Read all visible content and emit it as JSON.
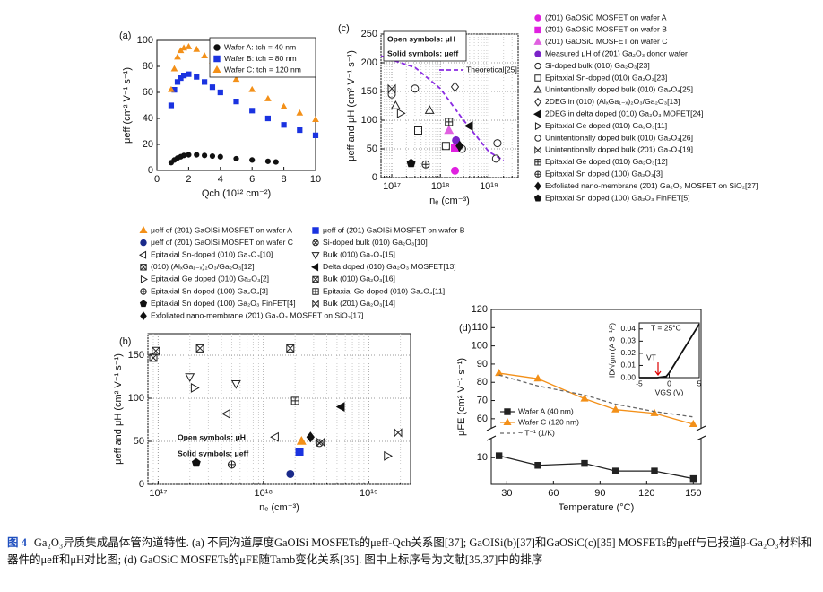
{
  "chart_data": [
    {
      "type": "scatter",
      "label": "(a)",
      "xlabel": "Qch (10¹² cm⁻²)",
      "ylabel": "μeff (cm² V⁻¹ s⁻¹)",
      "xlim": [
        0,
        10
      ],
      "xticks": [
        0,
        2,
        4,
        6,
        8,
        10
      ],
      "ylim": [
        0,
        100
      ],
      "yticks": [
        0,
        20,
        40,
        60,
        80,
        100
      ],
      "grid": false,
      "series": [
        {
          "name": "Wafer A: tch = 40 nm",
          "color": "#111111",
          "marker": "circle",
          "filled": true,
          "x": [
            0.9,
            1.1,
            1.3,
            1.5,
            1.7,
            2.0,
            2.5,
            3,
            3.5,
            4,
            5,
            6,
            7,
            7.5
          ],
          "values": [
            6,
            8,
            9.5,
            10.5,
            11.5,
            12,
            12,
            11.5,
            11,
            10.5,
            9,
            8,
            7,
            6.5
          ]
        },
        {
          "name": "Wafer B: tch = 80 nm",
          "color": "#1a33e0",
          "marker": "square",
          "filled": true,
          "x": [
            0.9,
            1.1,
            1.3,
            1.5,
            1.7,
            2.0,
            2.5,
            3,
            3.5,
            4,
            5,
            6,
            7,
            8,
            9,
            10
          ],
          "values": [
            50,
            62,
            68,
            71,
            73,
            74,
            72,
            68,
            64,
            60,
            53,
            46,
            40,
            35,
            31,
            27
          ]
        },
        {
          "name": "Wafer C: tch = 120 nm",
          "color": "#f39019",
          "marker": "triangle-up",
          "filled": true,
          "x": [
            0.9,
            1.1,
            1.3,
            1.5,
            1.7,
            2.0,
            2.5,
            3,
            3.5,
            4,
            5,
            6,
            7,
            8,
            9,
            10
          ],
          "values": [
            62,
            78,
            87,
            92,
            94,
            95,
            93,
            88,
            84,
            79,
            70,
            62,
            55,
            49,
            44,
            39
          ]
        }
      ]
    },
    {
      "type": "scatter",
      "label": "(b)",
      "xlabel": "nₑ (cm⁻³)",
      "ylabel": "μeff and μH (cm² V⁻¹ s⁻¹)",
      "xscale": "log",
      "xlim": [
        8e+16,
        2.5e+19
      ],
      "xticks": [
        {
          "value": 1e+17,
          "label": "10¹⁷"
        },
        {
          "value": 1e+18,
          "label": "10¹⁸"
        },
        {
          "value": 1e+19,
          "label": "10¹⁹"
        }
      ],
      "ylim": [
        0,
        175
      ],
      "yticks": [
        0,
        50,
        100,
        150
      ],
      "grid": true,
      "annotations": [
        "Open symbols: μH",
        "Solid symbols: μeff"
      ],
      "series": [
        {
          "name": "μeff of (2̄01) GaOISi MOSFET on wafer A",
          "color": "#f39019",
          "marker": "triangle-up",
          "filled": true,
          "x": [
            2.3e+18
          ],
          "values": [
            50
          ]
        },
        {
          "name": "μeff of (2̄01) GaOISi MOSFET on wafer B",
          "color": "#1a33e0",
          "marker": "square",
          "filled": true,
          "x": [
            2.2e+18
          ],
          "values": [
            38
          ]
        },
        {
          "name": "μeff of (2̄01) GaOISi MOSFET on wafer C",
          "color": "#1a2a8a",
          "marker": "circle",
          "filled": true,
          "x": [
            1.8e+18
          ],
          "values": [
            12
          ]
        },
        {
          "name": "Si-doped bulk (010) Ga₂O₃[10]",
          "color": "#222222",
          "marker": "x-circle",
          "filled": false,
          "x": [
            3.4e+18
          ],
          "values": [
            48
          ]
        },
        {
          "name": "Epitaxial Sn-doped (010) Ga₂O₃[10]",
          "color": "#222222",
          "marker": "triangle-left",
          "filled": false,
          "x": [
            4.5e+17,
            1.3e+18
          ],
          "values": [
            82,
            55
          ]
        },
        {
          "name": "Bulk (010) Ga₂O₃[15]",
          "color": "#222222",
          "marker": "triangle-down",
          "filled": false,
          "x": [
            2e+17,
            5.5e+17
          ],
          "values": [
            125,
            117
          ]
        },
        {
          "name": "(010) (AlₓGa₁₋ₓ)₂O₃/Ga₂O₃[12]",
          "color": "#222222",
          "marker": "x-square",
          "filled": false,
          "x": [
            9.5e+16,
            2.5e+17,
            1.8e+18
          ],
          "values": [
            155,
            158,
            158
          ]
        },
        {
          "name": "Delta doped (010) Ga₂O₃ MOSFET[13]",
          "color": "#111111",
          "marker": "triangle-left",
          "filled": true,
          "x": [
            5.5e+18
          ],
          "values": [
            90
          ]
        },
        {
          "name": "Epitaxial Ge doped (010) Ga₂O₃[2]",
          "color": "#222222",
          "marker": "triangle-right",
          "filled": false,
          "x": [
            2.2e+17,
            1.5e+19
          ],
          "values": [
            112,
            33
          ]
        },
        {
          "name": "Bulk (010) Ga₂O₃[16]",
          "color": "#222222",
          "marker": "x-square",
          "filled": false,
          "x": [
            9e+16
          ],
          "values": [
            147
          ]
        },
        {
          "name": "Epitaxial Sn doped (100) Ga₂O₃[3]",
          "color": "#222222",
          "marker": "plus-circle",
          "filled": false,
          "x": [
            5e+17
          ],
          "values": [
            23
          ]
        },
        {
          "name": "Epitaxial Ge doped (010) Ga₂O₃[11]",
          "color": "#222222",
          "marker": "plus-square",
          "filled": false,
          "x": [
            2e+18
          ],
          "values": [
            97
          ]
        },
        {
          "name": "Epitaxial Sn doped (100) Ga₂O₃ FinFET[4]",
          "color": "#111111",
          "marker": "pentagon",
          "filled": true,
          "x": [
            2.3e+17
          ],
          "values": [
            25
          ]
        },
        {
          "name": "Bulk (2̄01) Ga₂O₃[14]",
          "color": "#222222",
          "marker": "bowtie",
          "filled": false,
          "x": [
            1.9e+19,
            3.5e+18
          ],
          "values": [
            60,
            49
          ]
        },
        {
          "name": "Exfoliated nano-membrane (2̄01) Ga₂O₃ MOSFET on SiO₂[17]",
          "color": "#111111",
          "marker": "diamond",
          "filled": true,
          "x": [
            2.8e+18
          ],
          "values": [
            55
          ]
        }
      ]
    },
    {
      "type": "scatter",
      "label": "(c)",
      "xlabel": "nₑ (cm⁻³)",
      "ylabel": "μeff and μH (cm² V⁻¹ s⁻¹)",
      "xscale": "log",
      "xlim": [
        6e+16,
        4e+19
      ],
      "xticks": [
        {
          "value": 1e+17,
          "label": "10¹⁷"
        },
        {
          "value": 1e+18,
          "label": "10¹⁸"
        },
        {
          "value": 1e+19,
          "label": "10¹⁹"
        }
      ],
      "ylim": [
        0,
        250
      ],
      "yticks": [
        0,
        50,
        100,
        150,
        200,
        250
      ],
      "grid": true,
      "annotations": [
        "Open symbols: μH",
        "Solid symbols: μeff"
      ],
      "theory": {
        "name": "Theoretical[25]",
        "color": "#8a2be2",
        "x": [
          6e+16,
          1e+17,
          3e+17,
          1e+18,
          3e+18,
          1e+19,
          2e+19
        ],
        "values": [
          212,
          205,
          192,
          155,
          100,
          45,
          30
        ]
      },
      "series": [
        {
          "name": "(2̄01) GaOSiC MOSFET on wafer A",
          "color": "#e020e0",
          "marker": "circle",
          "filled": true,
          "x": [
            2e+18
          ],
          "values": [
            12
          ]
        },
        {
          "name": "(2̄01) GaOSiC MOSFET on wafer B",
          "color": "#e020e0",
          "marker": "square",
          "filled": true,
          "x": [
            2e+18
          ],
          "values": [
            52
          ]
        },
        {
          "name": "(2̄01) GaOSiC MOSFET on wafer C",
          "color": "#e060e0",
          "marker": "triangle-up",
          "filled": true,
          "x": [
            1.5e+18
          ],
          "values": [
            82
          ]
        },
        {
          "name": "Measured μH of (2̄01) Ga₂O₃ donor wafer",
          "color": "#7a22c8",
          "marker": "circle",
          "filled": true,
          "x": [
            2.1e+18
          ],
          "values": [
            65
          ]
        },
        {
          "name": "Si-doped bulk (010) Ga₂O₃[23]",
          "color": "#222222",
          "marker": "circle",
          "filled": false,
          "x": [
            1e+17,
            3e+17,
            1.5e+19,
            2.8e+18
          ],
          "values": [
            145,
            155,
            60,
            50
          ]
        },
        {
          "name": "Epitaxial Sn-doped (010) Ga₂O₃[23]",
          "color": "#222222",
          "marker": "square",
          "filled": false,
          "x": [
            3.5e+17,
            1.3e+18
          ],
          "values": [
            82,
            55
          ]
        },
        {
          "name": "Unintentionally doped bulk (010) Ga₂O₃[25]",
          "color": "#222222",
          "marker": "triangle-up",
          "filled": false,
          "x": [
            1.2e+17,
            6e+17
          ],
          "values": [
            125,
            117
          ]
        },
        {
          "name": "2DEG in (010) (AlₓGa₁₋ₓ)₂O₃/Ga₂O₃[13]",
          "color": "#222222",
          "marker": "diamond",
          "filled": false,
          "x": [
            2e+18
          ],
          "values": [
            158
          ]
        },
        {
          "name": "2DEG in delta doped (010) Ga₂O₃ MOFET[24]",
          "color": "#111111",
          "marker": "triangle-left",
          "filled": true,
          "x": [
            4e+18
          ],
          "values": [
            90
          ]
        },
        {
          "name": "Epitaxial Ge doped (010) Ga₂O₃[11]",
          "color": "#222222",
          "marker": "triangle-right",
          "filled": false,
          "x": [
            1.5e+17
          ],
          "values": [
            112
          ]
        },
        {
          "name": "Unintentionally doped bulk (010) Ga₂O₃[26]",
          "color": "#222222",
          "marker": "circle",
          "filled": false,
          "x": [
            1.4e+19
          ],
          "values": [
            33
          ]
        },
        {
          "name": "Unintentionally doped bulk (2̄01) Ga₂O₃[19]",
          "color": "#222222",
          "marker": "bowtie",
          "filled": false,
          "x": [
            1e+17
          ],
          "values": [
            155
          ]
        },
        {
          "name": "Epitaxial Ge doped (010) Ga₂O₃[12]",
          "color": "#222222",
          "marker": "plus-square",
          "filled": false,
          "x": [
            1.5e+18
          ],
          "values": [
            97
          ]
        },
        {
          "name": "Epitaxial Sn doped (100) Ga₂O₃[3]",
          "color": "#222222",
          "marker": "plus-circle",
          "filled": false,
          "x": [
            5e+17
          ],
          "values": [
            23
          ]
        },
        {
          "name": "Exfoliated nano-membrane (2̄01) Ga₂O₃ MOSFET on SiO₂[27]",
          "color": "#111111",
          "marker": "diamond",
          "filled": true,
          "x": [
            2.5e+18
          ],
          "values": [
            55
          ]
        },
        {
          "name": "Epitaxial Sn doped (100) Ga₂O₃ FinFET[5]",
          "color": "#111111",
          "marker": "pentagon",
          "filled": true,
          "x": [
            2.5e+17
          ],
          "values": [
            25
          ]
        }
      ]
    },
    {
      "type": "line",
      "label": "(d)",
      "xlabel": "Temperature (°C)",
      "ylabel": "μFE (cm² V⁻¹ s⁻¹)",
      "xlim": [
        20,
        155
      ],
      "xticks": [
        30,
        60,
        90,
        120,
        150
      ],
      "ylim": [
        55,
        120
      ],
      "yticks": [
        60,
        70,
        80,
        90,
        100,
        110,
        120
      ],
      "ylim_lower": [
        3,
        15
      ],
      "yticks_lower": [
        10
      ],
      "grid": false,
      "series": [
        {
          "name": "Wafer A (40 nm)",
          "color": "#222222",
          "marker": "square",
          "filled": true,
          "line": true,
          "axis": "lower",
          "x": [
            25,
            50,
            80,
            100,
            125,
            150
          ],
          "values": [
            10.5,
            8,
            8.5,
            6.5,
            6.5,
            4.5
          ]
        },
        {
          "name": "Wafer C (120 nm)",
          "color": "#f39019",
          "marker": "triangle-up",
          "filled": true,
          "line": true,
          "x": [
            25,
            50,
            80,
            100,
            125,
            150
          ],
          "values": [
            85,
            82,
            71,
            65,
            63,
            57
          ]
        },
        {
          "name": "~ T⁻¹ (1/K)",
          "color": "#666666",
          "line": true,
          "dash": true,
          "x": [
            25,
            50,
            80,
            100,
            125,
            150
          ],
          "values": [
            84,
            78,
            73,
            68,
            64,
            61
          ]
        }
      ]
    },
    {
      "type": "line",
      "xlabel": "VGS (V)",
      "ylabel": "ID/√gm (A S⁻¹/²)",
      "xlim": [
        -5,
        5
      ],
      "xticks": [
        -5,
        0,
        5
      ],
      "ylim": [
        0,
        0.045
      ],
      "yticks": [
        {
          "value": 0,
          "label": "0.00"
        },
        {
          "value": 0.01,
          "label": "0.01"
        },
        {
          "value": 0.02,
          "label": "0.02"
        },
        {
          "value": 0.03,
          "label": "0.03"
        },
        {
          "value": 0.04,
          "label": "0.04"
        }
      ],
      "grid": false,
      "annotations": [
        "T = 25°C",
        "VT"
      ],
      "series": [
        {
          "color": "#111111",
          "line": true,
          "x": [
            -5,
            -2,
            -0.5,
            0,
            1,
            2,
            3,
            4,
            5
          ],
          "values": [
            0,
            0,
            0.001,
            0.004,
            0.012,
            0.02,
            0.028,
            0.036,
            0.044
          ]
        }
      ]
    }
  ],
  "caption": {
    "label": "图 4",
    "text": "Ga₂O₃异质集成晶体管沟道特性. (a) 不同沟道厚度GaOISi MOSFETs的μeff-Qch关系图[37]; GaOISi(b)[37]和GaOSiC(c)[35] MOSFETs的μeff与已报道β-Ga₂O₃材料和器件的μeff和μH对比图; (d) GaOSiC MOSFETs的μFE随Tamb变化关系[35]. 图中上标序号为文献[35,37]中的排序"
  }
}
